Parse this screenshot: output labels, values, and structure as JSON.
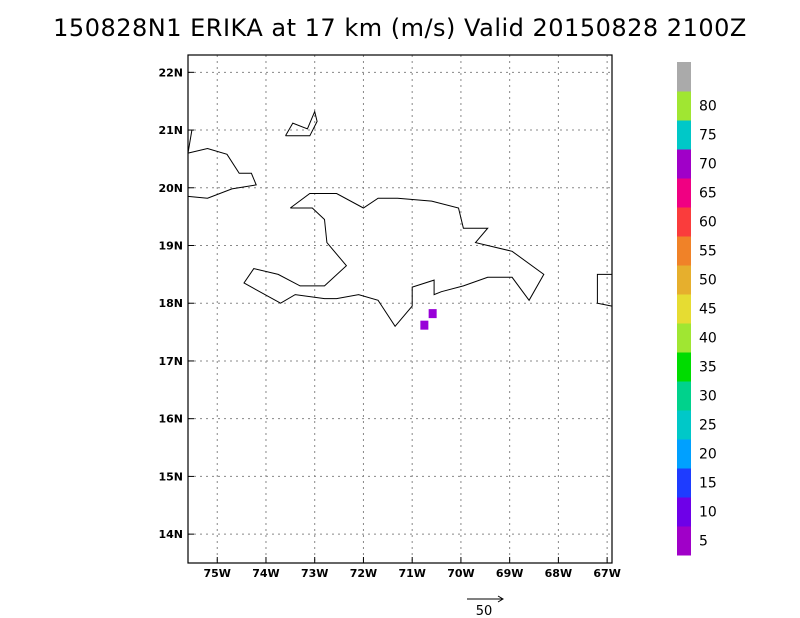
{
  "title": "150828N1 ERIKA at 17 km (m/s) Valid 20150828 2100Z",
  "map": {
    "lon_range": [
      -75.6,
      -66.9
    ],
    "lat_range": [
      13.5,
      22.3
    ],
    "x_ticks": [
      {
        "value": -75,
        "label": "75W"
      },
      {
        "value": -74,
        "label": "74W"
      },
      {
        "value": -73,
        "label": "73W"
      },
      {
        "value": -72,
        "label": "72W"
      },
      {
        "value": -71,
        "label": "71W"
      },
      {
        "value": -70,
        "label": "70W"
      },
      {
        "value": -69,
        "label": "69W"
      },
      {
        "value": -68,
        "label": "68W"
      },
      {
        "value": -67,
        "label": "67W"
      }
    ],
    "y_ticks": [
      {
        "value": 14,
        "label": "14N"
      },
      {
        "value": 15,
        "label": "15N"
      },
      {
        "value": 16,
        "label": "16N"
      },
      {
        "value": 17,
        "label": "17N"
      },
      {
        "value": 18,
        "label": "18N"
      },
      {
        "value": 19,
        "label": "19N"
      },
      {
        "value": 20,
        "label": "20N"
      },
      {
        "value": 21,
        "label": "21N"
      },
      {
        "value": 22,
        "label": "22N"
      }
    ],
    "grid": true,
    "coastlines": [
      [
        [
          -75.6,
          20.6
        ],
        [
          -75.2,
          20.68
        ],
        [
          -74.8,
          20.58
        ],
        [
          -74.55,
          20.25
        ],
        [
          -74.3,
          20.25
        ],
        [
          -74.2,
          20.05
        ],
        [
          -74.7,
          19.98
        ],
        [
          -75.2,
          19.82
        ],
        [
          -75.6,
          19.85
        ]
      ],
      [
        [
          -75.6,
          20.6
        ],
        [
          -75.52,
          21.0
        ]
      ],
      [
        [
          -73.6,
          20.9
        ],
        [
          -73.45,
          21.12
        ],
        [
          -73.15,
          21.02
        ],
        [
          -73.0,
          21.32
        ],
        [
          -72.95,
          21.15
        ],
        [
          -73.1,
          20.9
        ],
        [
          -73.6,
          20.9
        ]
      ],
      [
        [
          -73.5,
          19.65
        ],
        [
          -73.1,
          19.9
        ],
        [
          -72.55,
          19.9
        ],
        [
          -72.0,
          19.65
        ],
        [
          -71.7,
          19.82
        ],
        [
          -71.3,
          19.82
        ],
        [
          -70.6,
          19.77
        ],
        [
          -70.05,
          19.65
        ],
        [
          -69.95,
          19.3
        ],
        [
          -69.45,
          19.3
        ],
        [
          -69.7,
          19.05
        ],
        [
          -68.95,
          18.9
        ],
        [
          -68.3,
          18.5
        ],
        [
          -68.6,
          18.05
        ],
        [
          -68.95,
          18.45
        ],
        [
          -69.45,
          18.45
        ],
        [
          -69.95,
          18.3
        ],
        [
          -70.4,
          18.2
        ],
        [
          -70.55,
          18.15
        ],
        [
          -70.55,
          18.4
        ],
        [
          -71.0,
          18.28
        ],
        [
          -71.0,
          17.95
        ],
        [
          -71.35,
          17.6
        ],
        [
          -71.7,
          18.05
        ],
        [
          -72.1,
          18.15
        ],
        [
          -72.55,
          18.08
        ],
        [
          -72.8,
          18.08
        ],
        [
          -73.4,
          18.15
        ],
        [
          -73.7,
          18.0
        ],
        [
          -74.45,
          18.35
        ],
        [
          -74.25,
          18.6
        ],
        [
          -73.75,
          18.5
        ],
        [
          -73.3,
          18.3
        ],
        [
          -72.8,
          18.3
        ],
        [
          -72.35,
          18.65
        ],
        [
          -72.75,
          19.05
        ],
        [
          -72.8,
          19.45
        ],
        [
          -73.05,
          19.65
        ],
        [
          -73.5,
          19.65
        ]
      ],
      [
        [
          -66.9,
          18.5
        ],
        [
          -67.2,
          18.5
        ],
        [
          -67.2,
          18.0
        ],
        [
          -66.9,
          17.95
        ]
      ]
    ],
    "wind_cells": [
      {
        "lon": -70.75,
        "lat": 17.62,
        "value": 70,
        "color": "#9800d8"
      },
      {
        "lon": -70.58,
        "lat": 17.82,
        "value": 70,
        "color": "#9800d8"
      }
    ]
  },
  "colorbar": {
    "levels": [
      {
        "label": "5",
        "color": "#a000c8"
      },
      {
        "label": "10",
        "color": "#6e00e8"
      },
      {
        "label": "15",
        "color": "#1e3cff"
      },
      {
        "label": "20",
        "color": "#00a0ff"
      },
      {
        "label": "25",
        "color": "#00c8c8"
      },
      {
        "label": "30",
        "color": "#00d28c"
      },
      {
        "label": "35",
        "color": "#00dc00"
      },
      {
        "label": "40",
        "color": "#a0e632"
      },
      {
        "label": "45",
        "color": "#e6dc32"
      },
      {
        "label": "50",
        "color": "#e6af2d"
      },
      {
        "label": "55",
        "color": "#f08228"
      },
      {
        "label": "60",
        "color": "#fa3c3c"
      },
      {
        "label": "65",
        "color": "#f00082"
      },
      {
        "label": "70",
        "color": "#a000c8"
      },
      {
        "label": "75",
        "color": "#00c8c8"
      },
      {
        "label": "80",
        "color": "#a0e632"
      },
      {
        "label": "",
        "color": "#aaaaaa"
      }
    ]
  },
  "vector_key": {
    "label": "50"
  }
}
